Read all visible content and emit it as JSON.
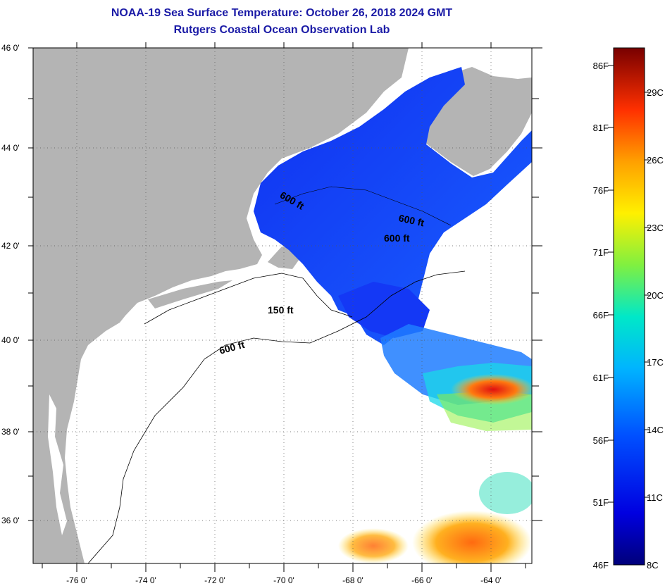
{
  "title": "NOAA-19 Sea Surface Temperature:  October 26, 2018 2024 GMT",
  "subtitle": "Rutgers Coastal Ocean Observation Lab",
  "map": {
    "lat_labels": [
      "46 0'",
      "44 0'",
      "42 0'",
      "40 0'",
      "38 0'",
      "36 0'"
    ],
    "lon_labels": [
      "-76 0'",
      "-74 0'",
      "-72 0'",
      "-70 0'",
      "-68 0'",
      "-66 0'",
      "-64 0'"
    ],
    "contour_labels": [
      "600 ft",
      "600 ft",
      "600 ft",
      "150 ft",
      "600 ft"
    ],
    "land_color": "#b4b4b4",
    "no_data_color": "#ffffff"
  },
  "colorbar": {
    "fahrenheit_labels": [
      "86F",
      "81F",
      "76F",
      "71F",
      "66F",
      "61F",
      "56F",
      "51F",
      "46F"
    ],
    "celsius_labels": [
      "29C",
      "26C",
      "23C",
      "20C",
      "17C",
      "14C",
      "11C",
      "8C"
    ]
  }
}
